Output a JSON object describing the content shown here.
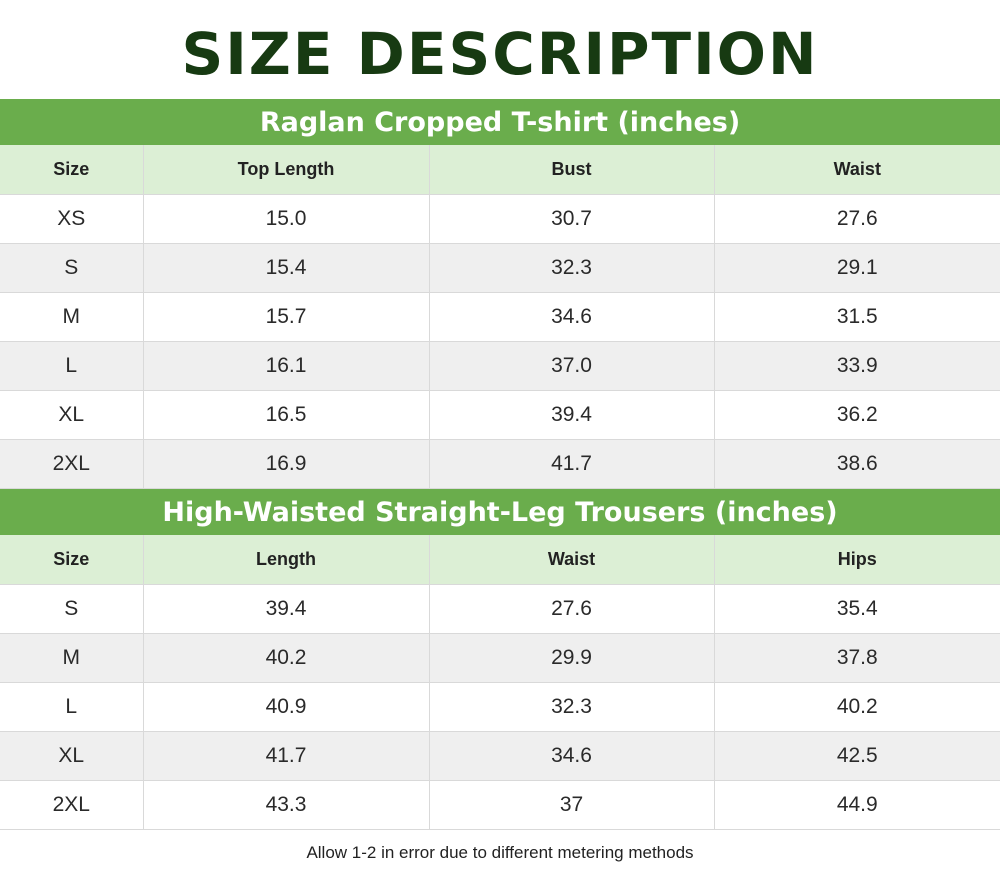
{
  "title": "SIZE DESCRIPTION",
  "tables": [
    {
      "caption": "Raglan Cropped T-shirt (inches)",
      "headers": [
        "Size",
        "Top Length",
        "Bust",
        "Waist"
      ],
      "rows": [
        [
          "XS",
          "15.0",
          "30.7",
          "27.6"
        ],
        [
          "S",
          "15.4",
          "32.3",
          "29.1"
        ],
        [
          "M",
          "15.7",
          "34.6",
          "31.5"
        ],
        [
          "L",
          "16.1",
          "37.0",
          "33.9"
        ],
        [
          "XL",
          "16.5",
          "39.4",
          "36.2"
        ],
        [
          "2XL",
          "16.9",
          "41.7",
          "38.6"
        ]
      ]
    },
    {
      "caption": "High-Waisted Straight-Leg Trousers (inches)",
      "headers": [
        "Size",
        "Length",
        "Waist",
        "Hips"
      ],
      "rows": [
        [
          "S",
          "39.4",
          "27.6",
          "35.4"
        ],
        [
          "M",
          "40.2",
          "29.9",
          "37.8"
        ],
        [
          "L",
          "40.9",
          "32.3",
          "40.2"
        ],
        [
          "XL",
          "41.7",
          "34.6",
          "42.5"
        ],
        [
          "2XL",
          "43.3",
          "37",
          "44.9"
        ]
      ]
    }
  ],
  "footnote": "Allow 1-2 in error due to different metering methods",
  "colors": {
    "title": "#173a12",
    "banner": "#6aad4c",
    "header_row": "#dcefd5",
    "alt_row": "#efefef"
  }
}
